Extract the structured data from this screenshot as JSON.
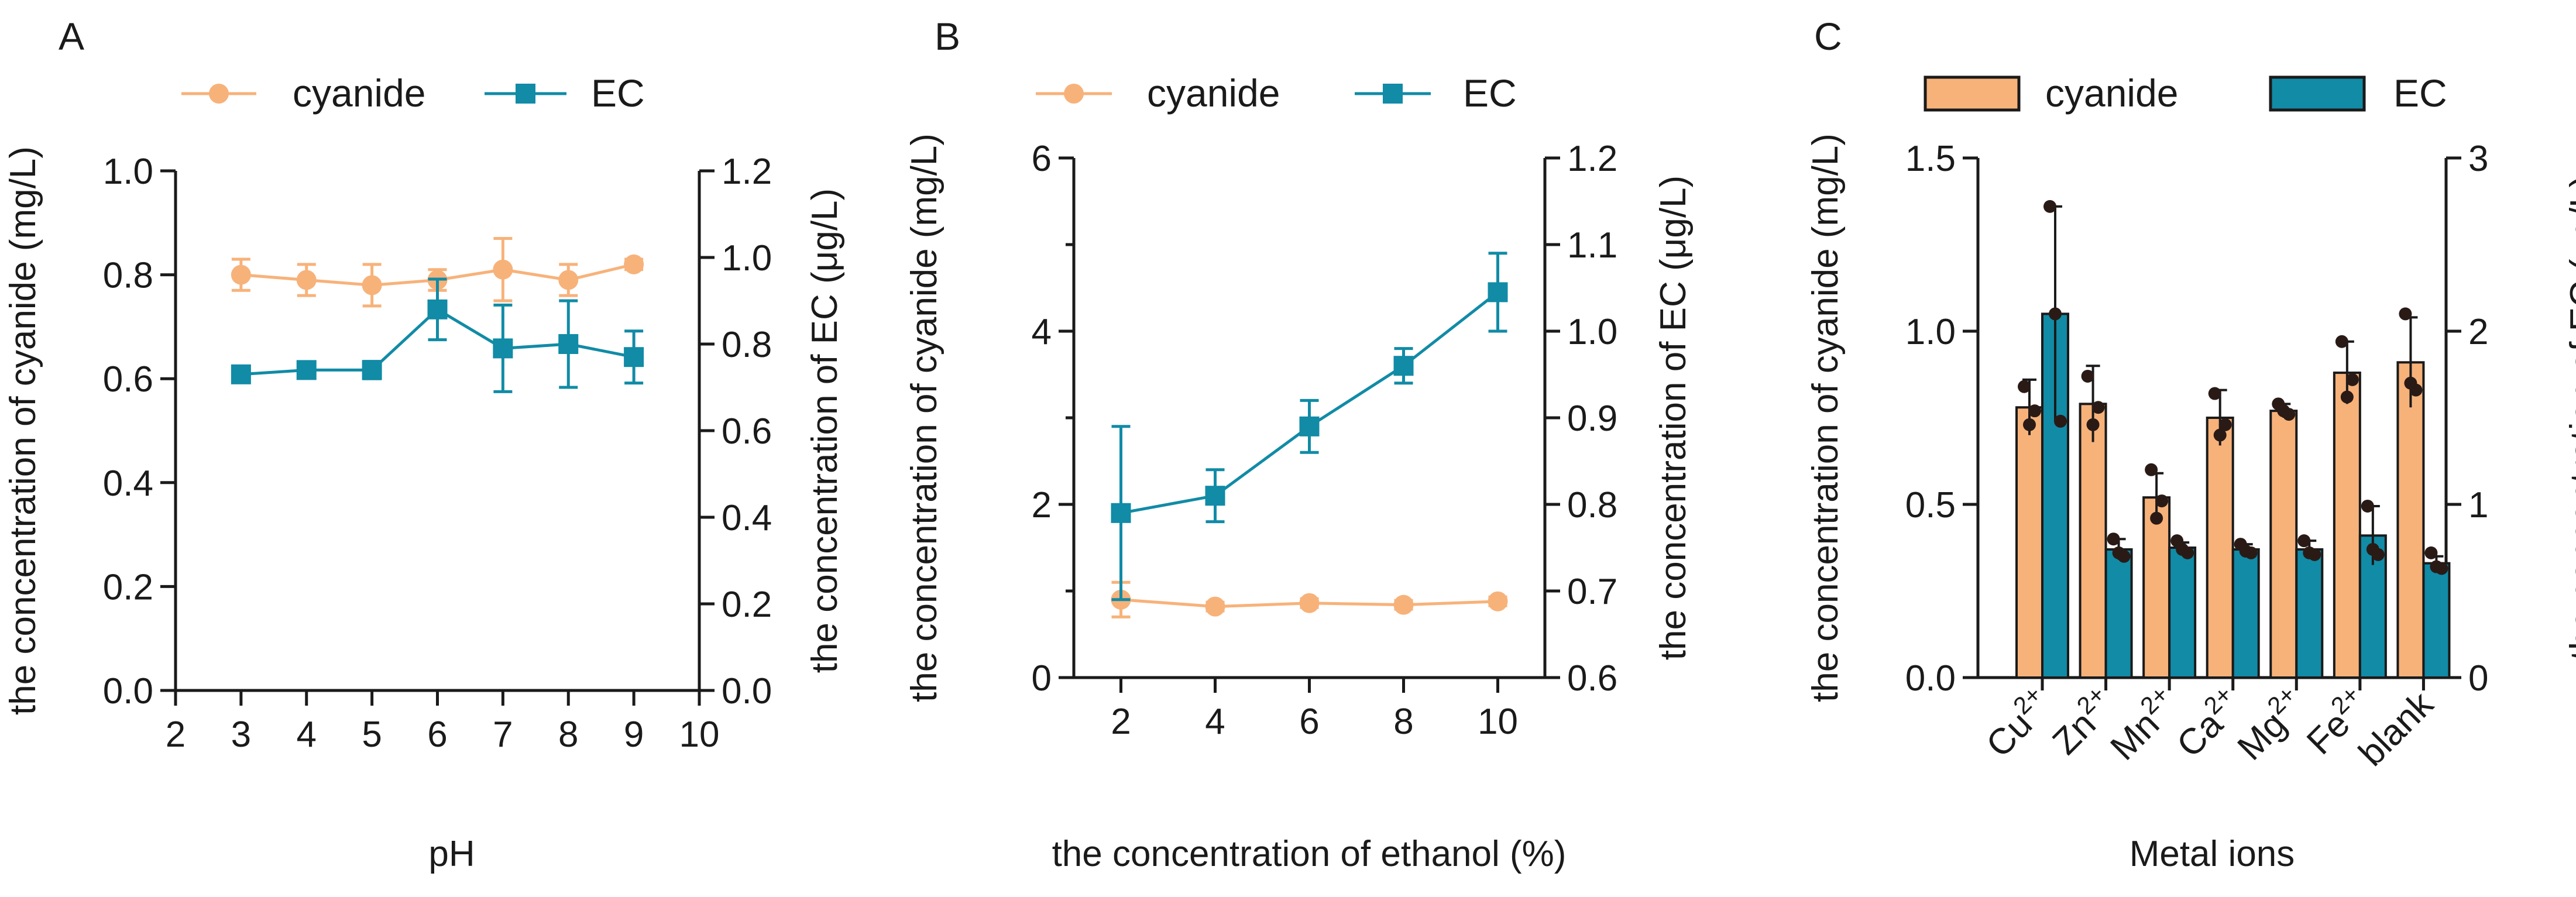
{
  "colors": {
    "cyanide": "#F7B27A",
    "ec": "#118BA6",
    "axis": "#1a1a1a",
    "dot": "#2a1a16"
  },
  "chart_data": [
    {
      "panel": "A",
      "type": "line",
      "xlabel": "pH",
      "ylabel_left": "the concentration of cyanide (mg/L)",
      "ylabel_right": "the concentration of EC (μg/L)",
      "xlim": [
        2,
        10
      ],
      "x_ticks": [
        "2",
        "3",
        "4",
        "5",
        "6",
        "7",
        "8",
        "9",
        "10"
      ],
      "ylim_left": [
        0,
        1.0
      ],
      "y_ticks_left": [
        "0.0",
        "0.2",
        "0.4",
        "0.6",
        "0.8",
        "1.0"
      ],
      "ylim_right": [
        0,
        1.2
      ],
      "y_ticks_right": [
        "0.0",
        "0.2",
        "0.4",
        "0.6",
        "0.8",
        "1.0",
        "1.2"
      ],
      "legend": [
        "cyanide",
        "EC"
      ],
      "series": [
        {
          "name": "cyanide",
          "axis": "left",
          "marker": "circle",
          "x": [
            3,
            4,
            5,
            6,
            7,
            8,
            9
          ],
          "values": [
            0.8,
            0.79,
            0.78,
            0.79,
            0.81,
            0.79,
            0.82
          ],
          "err": [
            0.03,
            0.03,
            0.04,
            0.02,
            0.06,
            0.03,
            0.01
          ]
        },
        {
          "name": "EC",
          "axis": "right",
          "marker": "square",
          "x": [
            3,
            4,
            5,
            6,
            7,
            8,
            9
          ],
          "values": [
            0.73,
            0.74,
            0.74,
            0.88,
            0.79,
            0.8,
            0.77
          ],
          "err": [
            0.01,
            0.01,
            0.02,
            0.07,
            0.1,
            0.1,
            0.06
          ]
        }
      ]
    },
    {
      "panel": "B",
      "type": "line",
      "xlabel": "the concentration of ethanol (%)",
      "ylabel_left": "the concentration of cyanide (mg/L)",
      "ylabel_right": "the concentration of EC (μg/L)",
      "xlim": [
        1,
        11
      ],
      "x_ticks": [
        "2",
        "4",
        "6",
        "8",
        "10"
      ],
      "ylim_left": [
        0,
        6
      ],
      "y_ticks_left": [
        "0",
        "2",
        "4",
        "6"
      ],
      "ylim_right": [
        0.6,
        1.2
      ],
      "y_ticks_right": [
        "0.6",
        "0.7",
        "0.8",
        "0.9",
        "1.0",
        "1.1",
        "1.2"
      ],
      "legend": [
        "cyanide",
        "EC"
      ],
      "series": [
        {
          "name": "cyanide",
          "axis": "left",
          "marker": "circle",
          "x": [
            2,
            4,
            6,
            8,
            10
          ],
          "values": [
            0.9,
            0.82,
            0.86,
            0.84,
            0.88
          ],
          "err": [
            0.2,
            0.05,
            0.05,
            0.05,
            0.05
          ]
        },
        {
          "name": "EC",
          "axis": "right",
          "marker": "square",
          "x": [
            2,
            4,
            6,
            8,
            10
          ],
          "values": [
            0.79,
            0.81,
            0.89,
            0.96,
            1.045
          ],
          "err": [
            0.1,
            0.03,
            0.03,
            0.02,
            0.045
          ]
        }
      ]
    },
    {
      "panel": "C",
      "type": "bar",
      "xlabel": "Metal ions",
      "ylabel_left": "the concentration of cyanide (mg/L)",
      "ylabel_right": "the concentration of EC (μg/L)",
      "categories": [
        {
          "base": "Cu",
          "sup": "2+"
        },
        {
          "base": "Zn",
          "sup": "2+"
        },
        {
          "base": "Mn",
          "sup": "2+"
        },
        {
          "base": "Ca",
          "sup": "2+"
        },
        {
          "base": "Mg",
          "sup": "2+"
        },
        {
          "base": "Fe",
          "sup": "2+"
        },
        {
          "base": "blank",
          "sup": ""
        }
      ],
      "ylim_left": [
        0,
        1.5
      ],
      "y_ticks_left": [
        "0.0",
        "0.5",
        "1.0",
        "1.5"
      ],
      "ylim_right": [
        0,
        3
      ],
      "y_ticks_right": [
        "0",
        "1",
        "2",
        "3"
      ],
      "legend": [
        "cyanide",
        "EC"
      ],
      "series": [
        {
          "name": "cyanide",
          "axis": "left",
          "values": [
            0.78,
            0.79,
            0.52,
            0.75,
            0.77,
            0.88,
            0.91
          ],
          "err": [
            0.08,
            0.11,
            0.07,
            0.08,
            0.02,
            0.09,
            0.13
          ],
          "points": [
            [
              0.84,
              0.73,
              0.77
            ],
            [
              0.87,
              0.73,
              0.78
            ],
            [
              0.6,
              0.46,
              0.51
            ],
            [
              0.82,
              0.7,
              0.73
            ],
            [
              0.79,
              0.77,
              0.76
            ],
            [
              0.97,
              0.81,
              0.86
            ],
            [
              1.05,
              0.85,
              0.83
            ]
          ]
        },
        {
          "name": "EC",
          "axis": "right",
          "values": [
            2.1,
            0.74,
            0.75,
            0.74,
            0.74,
            0.82,
            0.66
          ],
          "err": [
            0.62,
            0.06,
            0.03,
            0.03,
            0.05,
            0.17,
            0.04
          ],
          "points": [
            [
              2.72,
              2.1,
              1.48
            ],
            [
              0.8,
              0.72,
              0.7
            ],
            [
              0.79,
              0.74,
              0.72
            ],
            [
              0.77,
              0.73,
              0.72
            ],
            [
              0.79,
              0.72,
              0.71
            ],
            [
              0.99,
              0.74,
              0.71
            ],
            [
              0.72,
              0.64,
              0.63
            ]
          ]
        }
      ]
    }
  ]
}
